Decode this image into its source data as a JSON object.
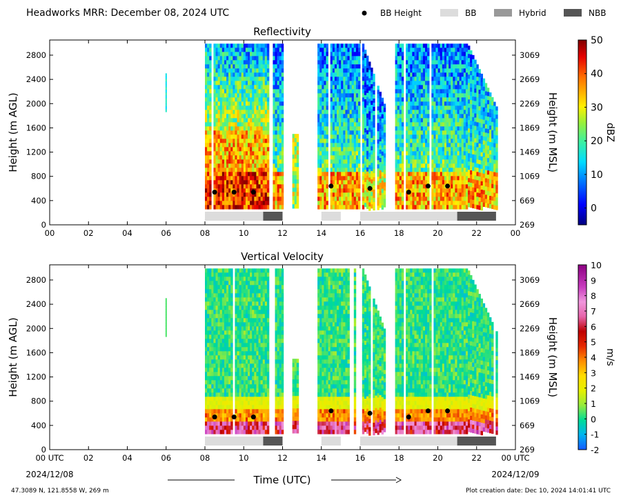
{
  "header": {
    "title": "Headworks MRR:  December 08, 2024 UTC",
    "legend": [
      {
        "label": "BB Height",
        "kind": "dot",
        "color": "#000000"
      },
      {
        "label": "BB",
        "kind": "box",
        "color": "#dcdcdc"
      },
      {
        "label": "Hybrid",
        "kind": "box",
        "color": "#999999"
      },
      {
        "label": "NBB",
        "kind": "box",
        "color": "#555555"
      }
    ]
  },
  "footer": {
    "xlabel": "Time (UTC)",
    "start_date": "2024/12/08",
    "end_date": "2024/12/09",
    "location": "47.3089 N, 121.8558 W, 269 m",
    "creation": "Plot creation date: Dec 10, 2024 14:01:41 UTC"
  },
  "chart_data": [
    {
      "type": "heatmap",
      "title": "Reflectivity",
      "ylabel_left": "Height (m AGL)",
      "ylabel_right": "Height (m MSL)",
      "x_ticks": [
        "00",
        "02",
        "04",
        "06",
        "08",
        "10",
        "12",
        "14",
        "16",
        "18",
        "20",
        "22",
        "00"
      ],
      "x_first_label": "00",
      "x_last_label": "00",
      "xlim_hours": [
        0,
        24
      ],
      "ylim": [
        0,
        3050
      ],
      "y_ticks_left": [
        0,
        400,
        800,
        1200,
        1600,
        2000,
        2400,
        2800
      ],
      "y_ticks_right": [
        269,
        669,
        1069,
        1469,
        1869,
        2269,
        2669,
        3069
      ],
      "colorbar": {
        "label": "dBZ",
        "min": -5,
        "max": 50,
        "ticks": [
          0,
          10,
          20,
          30,
          40,
          50
        ],
        "colormap": "jet"
      },
      "precip_segments": [
        {
          "start": 8.0,
          "end": 11.3,
          "intensity": "strong"
        },
        {
          "start": 11.5,
          "end": 12.0,
          "intensity": "moderate"
        },
        {
          "start": 12.5,
          "end": 12.75,
          "intensity": "light"
        },
        {
          "start": 13.8,
          "end": 15.9,
          "intensity": "moderate"
        },
        {
          "start": 16.1,
          "end": 17.3,
          "intensity": "moderate"
        },
        {
          "start": 17.8,
          "end": 23.0,
          "intensity": "moderate"
        }
      ],
      "isolated_echo": {
        "hour": 6.0,
        "bottom": 1900,
        "top": 2500
      },
      "bb_height": [
        {
          "hour": 8.5,
          "height": 540
        },
        {
          "hour": 9.5,
          "height": 540
        },
        {
          "hour": 10.5,
          "height": 540
        },
        {
          "hour": 14.5,
          "height": 640
        },
        {
          "hour": 16.5,
          "height": 600
        },
        {
          "hour": 18.5,
          "height": 540
        },
        {
          "hour": 19.5,
          "height": 640
        },
        {
          "hour": 20.5,
          "height": 640
        }
      ],
      "bb_type_bars": [
        {
          "start": 8.0,
          "end": 11.0,
          "type": "BB"
        },
        {
          "start": 11.0,
          "end": 12.0,
          "type": "NBB"
        },
        {
          "start": 14.0,
          "end": 15.0,
          "type": "BB"
        },
        {
          "start": 16.0,
          "end": 21.0,
          "type": "BB"
        },
        {
          "start": 21.0,
          "end": 23.0,
          "type": "NBB"
        }
      ]
    },
    {
      "type": "heatmap",
      "title": "Vertical Velocity",
      "ylabel_left": "Height (m AGL)",
      "ylabel_right": "Height (m MSL)",
      "x_ticks": [
        "00",
        "02",
        "04",
        "06",
        "08",
        "10",
        "12",
        "14",
        "16",
        "18",
        "20",
        "22",
        "00"
      ],
      "x_first_label": "00 UTC",
      "x_last_label": "00 UTC",
      "xlim_hours": [
        0,
        24
      ],
      "ylim": [
        0,
        3050
      ],
      "y_ticks_left": [
        0,
        400,
        800,
        1200,
        1600,
        2000,
        2400,
        2800
      ],
      "y_ticks_right": [
        269,
        669,
        1069,
        1469,
        1869,
        2269,
        2669,
        3069
      ],
      "colorbar": {
        "label": "m/s",
        "min": -2,
        "max": 10,
        "ticks": [
          -2,
          -1,
          0,
          1,
          2,
          3,
          4,
          5,
          6,
          7,
          8,
          9,
          10
        ],
        "colormap": "velocity"
      },
      "precip_segments": [
        {
          "start": 8.0,
          "end": 11.3,
          "intensity": "strong"
        },
        {
          "start": 11.5,
          "end": 12.0,
          "intensity": "moderate"
        },
        {
          "start": 12.5,
          "end": 12.75,
          "intensity": "light"
        },
        {
          "start": 13.8,
          "end": 15.9,
          "intensity": "moderate"
        },
        {
          "start": 16.1,
          "end": 17.3,
          "intensity": "moderate"
        },
        {
          "start": 17.8,
          "end": 23.0,
          "intensity": "moderate"
        }
      ],
      "isolated_echo": {
        "hour": 6.0,
        "bottom": 1900,
        "top": 2500
      },
      "bb_height": [
        {
          "hour": 8.5,
          "height": 540
        },
        {
          "hour": 9.5,
          "height": 540
        },
        {
          "hour": 10.5,
          "height": 540
        },
        {
          "hour": 14.5,
          "height": 640
        },
        {
          "hour": 16.5,
          "height": 600
        },
        {
          "hour": 18.5,
          "height": 540
        },
        {
          "hour": 19.5,
          "height": 640
        },
        {
          "hour": 20.5,
          "height": 640
        }
      ],
      "bb_type_bars": [
        {
          "start": 8.0,
          "end": 11.0,
          "type": "BB"
        },
        {
          "start": 11.0,
          "end": 12.0,
          "type": "NBB"
        },
        {
          "start": 14.0,
          "end": 15.0,
          "type": "BB"
        },
        {
          "start": 16.0,
          "end": 21.0,
          "type": "BB"
        },
        {
          "start": 21.0,
          "end": 23.0,
          "type": "NBB"
        }
      ]
    }
  ]
}
